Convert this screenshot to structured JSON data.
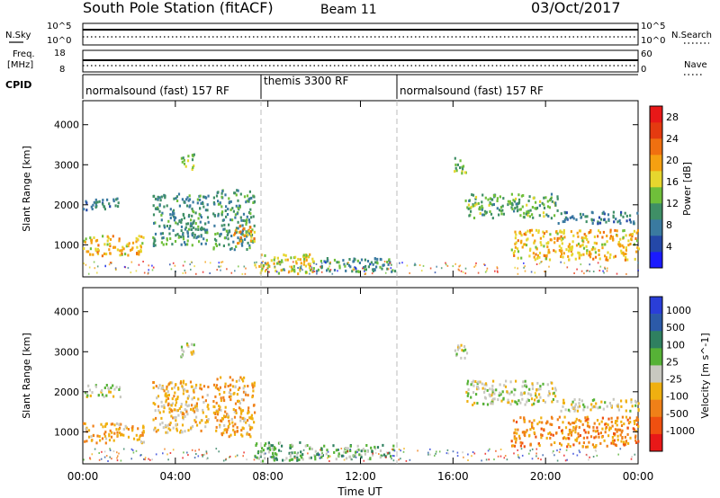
{
  "header": {
    "title": "South Pole Station (fitACF)",
    "beam": "Beam 11",
    "date": "03/Oct/2017"
  },
  "nsky": {
    "label": "N.Sky",
    "right_label": "N.Search",
    "ticks": [
      "10^5",
      "10^0"
    ],
    "right_ticks": [
      "10^5",
      "10^0"
    ]
  },
  "freq": {
    "label_line1": "Freq.",
    "label_line2": "[MHz]",
    "ticks": [
      "18",
      "8"
    ],
    "right_ticks": [
      "60",
      "0"
    ],
    "right_label": "Nave"
  },
  "cpid": {
    "label": "CPID",
    "segments": [
      {
        "label": "normalsound (fast) 157 RF",
        "start_hour": 0
      },
      {
        "label": "themis 3300 RF",
        "start_hour": 8
      },
      {
        "label": "normalsound (fast) 157 RF",
        "start_hour": 14
      }
    ]
  },
  "x_axis": {
    "label": "Time UT",
    "ticks": [
      "00:00",
      "04:00",
      "08:00",
      "12:00",
      "16:00",
      "20:00",
      "00:00"
    ]
  },
  "power_panel": {
    "ylabel": "Slant Range [km]",
    "yticks": [
      "1000",
      "2000",
      "3000",
      "4000"
    ],
    "colorbar_label": "Power [dB]",
    "colorbar_ticks": [
      "4",
      "8",
      "12",
      "16",
      "20",
      "24",
      "28"
    ],
    "colors": [
      "#1a1aff",
      "#2448a8",
      "#3a7aa0",
      "#3f8f66",
      "#6fbf3a",
      "#e6d62e",
      "#f5a011",
      "#f07010",
      "#e43a10",
      "#e81818"
    ]
  },
  "velocity_panel": {
    "ylabel": "Slant Range [km]",
    "yticks": [
      "1000",
      "2000",
      "3000",
      "4000"
    ],
    "colorbar_label": "Velocity [m s^-1]",
    "colorbar_ticks": [
      "1000",
      "500",
      "100",
      "25",
      "-25",
      "-100",
      "-500",
      "-1000"
    ],
    "colors": [
      "#2a3ed8",
      "#2c5aa8",
      "#2f8060",
      "#56b236",
      "#c8c8c0",
      "#f0b010",
      "#f08018",
      "#f05010",
      "#e81818"
    ]
  },
  "chart_data": [
    {
      "type": "heatmap",
      "title": "Power",
      "xlabel": "Time UT",
      "ylabel": "Slant Range [km]",
      "xlim": [
        0,
        24
      ],
      "ylim": [
        200,
        4600
      ],
      "colorbar": {
        "label": "Power [dB]",
        "range": [
          0,
          30
        ]
      },
      "regions": [
        {
          "hours": [
            0.0,
            1.6
          ],
          "range_km": [
            1900,
            2200
          ],
          "value": 8
        },
        {
          "hours": [
            0.0,
            2.6
          ],
          "range_km": [
            750,
            1250
          ],
          "value": 18
        },
        {
          "hours": [
            3.0,
            5.4
          ],
          "range_km": [
            1000,
            2300
          ],
          "value": 10
        },
        {
          "hours": [
            4.2,
            4.8
          ],
          "range_km": [
            2900,
            3300
          ],
          "value": 14
        },
        {
          "hours": [
            5.6,
            7.4
          ],
          "range_km": [
            900,
            2400
          ],
          "value": 10
        },
        {
          "hours": [
            6.5,
            7.4
          ],
          "range_km": [
            1050,
            1500
          ],
          "value": 20
        },
        {
          "hours": [
            7.4,
            10.0
          ],
          "range_km": [
            300,
            800
          ],
          "value": 16
        },
        {
          "hours": [
            10.0,
            13.5
          ],
          "range_km": [
            350,
            700
          ],
          "value": 10
        },
        {
          "hours": [
            16.0,
            16.6
          ],
          "range_km": [
            2800,
            3200
          ],
          "value": 12
        },
        {
          "hours": [
            16.5,
            20.5
          ],
          "range_km": [
            1700,
            2300
          ],
          "value": 12
        },
        {
          "hours": [
            20.5,
            24.0
          ],
          "range_km": [
            1550,
            1850
          ],
          "value": 8
        },
        {
          "hours": [
            18.5,
            24.0
          ],
          "range_km": [
            650,
            1400
          ],
          "value": 18
        }
      ]
    },
    {
      "type": "heatmap",
      "title": "Velocity",
      "xlabel": "Time UT",
      "ylabel": "Slant Range [km]",
      "xlim": [
        0,
        24
      ],
      "ylim": [
        200,
        4600
      ],
      "colorbar": {
        "label": "Velocity [m s^-1]",
        "range": [
          -1000,
          1000
        ]
      },
      "regions": [
        {
          "hours": [
            0.0,
            1.6
          ],
          "range_km": [
            1900,
            2200
          ],
          "value": 0
        },
        {
          "hours": [
            0.0,
            2.6
          ],
          "range_km": [
            750,
            1250
          ],
          "value": -300
        },
        {
          "hours": [
            3.0,
            5.4
          ],
          "range_km": [
            1000,
            2300
          ],
          "value": -200
        },
        {
          "hours": [
            4.2,
            4.8
          ],
          "range_km": [
            2900,
            3300
          ],
          "value": 0
        },
        {
          "hours": [
            5.6,
            7.4
          ],
          "range_km": [
            900,
            2400
          ],
          "value": -300
        },
        {
          "hours": [
            7.4,
            10.0
          ],
          "range_km": [
            300,
            800
          ],
          "value": 200
        },
        {
          "hours": [
            10.0,
            13.5
          ],
          "range_km": [
            350,
            700
          ],
          "value": 200
        },
        {
          "hours": [
            16.0,
            16.6
          ],
          "range_km": [
            2800,
            3200
          ],
          "value": 0
        },
        {
          "hours": [
            16.5,
            20.5
          ],
          "range_km": [
            1700,
            2300
          ],
          "value": 0
        },
        {
          "hours": [
            20.5,
            24.0
          ],
          "range_km": [
            1550,
            1850
          ],
          "value": 0
        },
        {
          "hours": [
            18.5,
            24.0
          ],
          "range_km": [
            650,
            1400
          ],
          "value": -400
        }
      ]
    }
  ]
}
